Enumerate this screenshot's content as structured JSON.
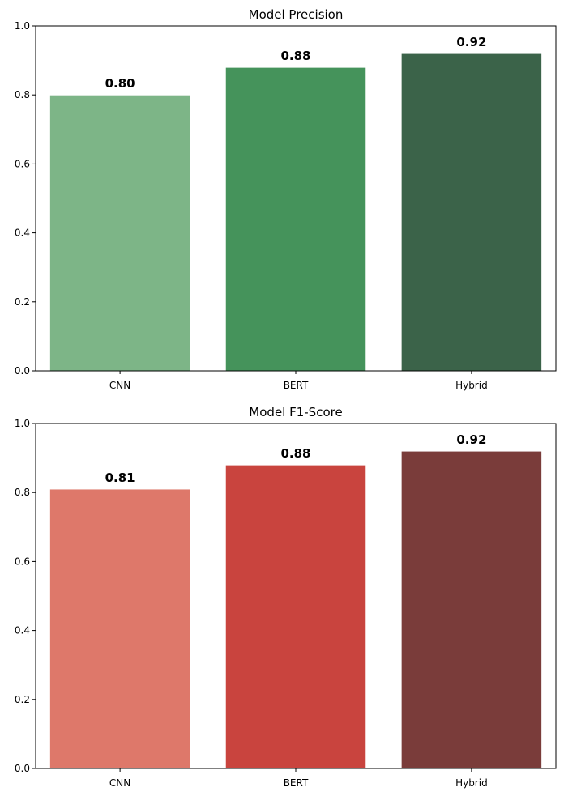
{
  "chart_data": [
    {
      "type": "bar",
      "title": "Model Precision",
      "xlabel": "",
      "ylabel": "",
      "categories": [
        "CNN",
        "BERT",
        "Hybrid"
      ],
      "values": [
        0.8,
        0.88,
        0.92
      ],
      "value_labels": [
        "0.80",
        "0.88",
        "0.92"
      ],
      "colors": [
        "#7db587",
        "#45935b",
        "#3b6349"
      ],
      "ylim": [
        0,
        1.0
      ],
      "yticks": [
        "0.0",
        "0.2",
        "0.4",
        "0.6",
        "0.8",
        "1.0"
      ],
      "grid": false,
      "legend": "none"
    },
    {
      "type": "bar",
      "title": "Model F1-Score",
      "xlabel": "",
      "ylabel": "",
      "categories": [
        "CNN",
        "BERT",
        "Hybrid"
      ],
      "values": [
        0.81,
        0.88,
        0.92
      ],
      "value_labels": [
        "0.81",
        "0.88",
        "0.92"
      ],
      "colors": [
        "#de786a",
        "#c9443e",
        "#7a3c3a"
      ],
      "ylim": [
        0,
        1.0
      ],
      "yticks": [
        "0.0",
        "0.2",
        "0.4",
        "0.6",
        "0.8",
        "1.0"
      ],
      "grid": false,
      "legend": "none"
    }
  ]
}
